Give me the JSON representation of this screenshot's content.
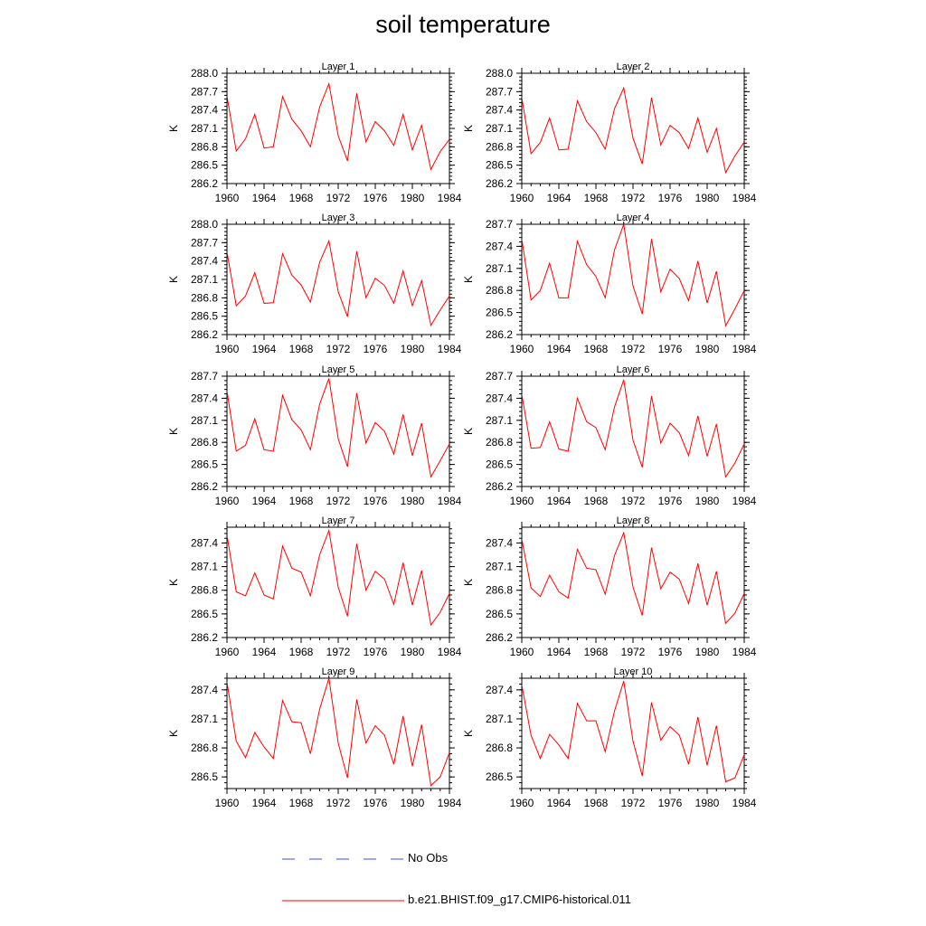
{
  "title": "soil temperature",
  "chart_data": {
    "type": "line",
    "x": [
      1960,
      1961,
      1962,
      1963,
      1964,
      1965,
      1966,
      1967,
      1968,
      1969,
      1970,
      1971,
      1972,
      1973,
      1974,
      1975,
      1976,
      1977,
      1978,
      1979,
      1980,
      1981,
      1982,
      1983,
      1984
    ],
    "xticks": [
      1960,
      1964,
      1968,
      1972,
      1976,
      1980,
      1984
    ],
    "xlim": [
      1960,
      1984
    ],
    "ylabel": "K",
    "series_color": "#ff0000",
    "panels": [
      {
        "title": "Layer 1",
        "ylim": [
          286.2,
          288.0
        ],
        "yticks": [
          286.2,
          286.5,
          286.8,
          287.1,
          287.4,
          287.7,
          288.0
        ],
        "values": [
          287.63,
          286.73,
          286.93,
          287.33,
          286.78,
          286.8,
          287.62,
          287.25,
          287.06,
          286.8,
          287.45,
          287.83,
          286.98,
          286.57,
          287.67,
          286.88,
          287.21,
          287.06,
          286.82,
          287.33,
          286.75,
          287.15,
          286.43,
          286.72,
          286.92
        ]
      },
      {
        "title": "Layer 2",
        "ylim": [
          286.2,
          288.0
        ],
        "yticks": [
          286.2,
          286.5,
          286.8,
          287.1,
          287.4,
          287.7,
          288.0
        ],
        "values": [
          287.6,
          286.69,
          286.87,
          287.27,
          286.75,
          286.76,
          287.55,
          287.21,
          287.03,
          286.76,
          287.42,
          287.76,
          286.94,
          286.52,
          287.6,
          286.83,
          287.15,
          287.03,
          286.77,
          287.27,
          286.71,
          287.1,
          286.38,
          286.65,
          286.88
        ]
      },
      {
        "title": "Layer 3",
        "ylim": [
          286.2,
          288.0
        ],
        "yticks": [
          286.2,
          286.5,
          286.8,
          287.1,
          287.4,
          287.7,
          288.0
        ],
        "values": [
          287.55,
          286.67,
          286.83,
          287.21,
          286.71,
          286.72,
          287.52,
          287.17,
          287.01,
          286.73,
          287.38,
          287.73,
          286.9,
          286.49,
          287.56,
          286.8,
          287.12,
          287.0,
          286.71,
          287.24,
          286.67,
          287.08,
          286.35,
          286.6,
          286.83
        ]
      },
      {
        "title": "Layer 4",
        "ylim": [
          286.2,
          287.7
        ],
        "yticks": [
          286.2,
          286.5,
          286.8,
          287.1,
          287.4,
          287.7
        ],
        "values": [
          287.5,
          286.67,
          286.8,
          287.17,
          286.7,
          286.7,
          287.47,
          287.15,
          286.99,
          286.7,
          287.35,
          287.7,
          286.86,
          286.48,
          287.5,
          286.78,
          287.09,
          286.96,
          286.66,
          287.2,
          286.63,
          287.06,
          286.32,
          286.55,
          286.8
        ]
      },
      {
        "title": "Layer 5",
        "ylim": [
          286.2,
          287.7
        ],
        "yticks": [
          286.2,
          286.5,
          286.8,
          287.1,
          287.4,
          287.7
        ],
        "values": [
          287.5,
          286.68,
          286.76,
          287.12,
          286.7,
          286.68,
          287.44,
          287.11,
          286.97,
          286.7,
          287.32,
          287.67,
          286.85,
          286.47,
          287.47,
          286.79,
          287.07,
          286.95,
          286.64,
          287.18,
          286.62,
          287.06,
          286.33,
          286.55,
          286.78
        ]
      },
      {
        "title": "Layer 6",
        "ylim": [
          286.2,
          287.7
        ],
        "yticks": [
          286.2,
          286.5,
          286.8,
          287.1,
          287.4,
          287.7
        ],
        "values": [
          287.45,
          286.72,
          286.73,
          287.08,
          286.71,
          286.68,
          287.4,
          287.08,
          287.0,
          286.7,
          287.28,
          287.65,
          286.83,
          286.46,
          287.43,
          286.79,
          287.06,
          286.93,
          286.62,
          287.16,
          286.61,
          287.05,
          286.33,
          286.52,
          286.78
        ]
      },
      {
        "title": "Layer 7",
        "ylim": [
          286.2,
          287.6
        ],
        "yticks": [
          286.2,
          286.5,
          286.8,
          287.1,
          287.4
        ],
        "values": [
          287.5,
          286.78,
          286.73,
          287.02,
          286.74,
          286.69,
          287.36,
          287.08,
          287.03,
          286.73,
          287.25,
          287.56,
          286.84,
          286.47,
          287.39,
          286.8,
          287.04,
          286.94,
          286.62,
          287.15,
          286.61,
          287.05,
          286.36,
          286.52,
          286.76
        ]
      },
      {
        "title": "Layer 8",
        "ylim": [
          286.2,
          287.6
        ],
        "yticks": [
          286.2,
          286.5,
          286.8,
          287.1,
          287.4
        ],
        "values": [
          287.45,
          286.83,
          286.72,
          286.99,
          286.78,
          286.7,
          287.32,
          287.08,
          287.06,
          286.75,
          287.24,
          287.53,
          286.84,
          286.48,
          287.34,
          286.82,
          287.03,
          286.94,
          286.63,
          287.14,
          286.61,
          287.04,
          286.38,
          286.51,
          286.76
        ]
      },
      {
        "title": "Layer 9",
        "ylim": [
          286.38,
          287.52
        ],
        "yticks": [
          286.5,
          286.8,
          287.1,
          287.4
        ],
        "values": [
          287.48,
          286.87,
          286.7,
          286.96,
          286.81,
          286.69,
          287.29,
          287.07,
          287.06,
          286.74,
          287.2,
          287.52,
          286.85,
          286.49,
          287.3,
          286.85,
          287.03,
          286.93,
          286.63,
          287.13,
          286.61,
          287.04,
          286.41,
          286.5,
          286.75
        ]
      },
      {
        "title": "Layer 10",
        "ylim": [
          286.38,
          287.52
        ],
        "yticks": [
          286.5,
          286.8,
          287.1,
          287.4
        ],
        "values": [
          287.45,
          286.93,
          286.69,
          286.94,
          286.83,
          286.69,
          287.26,
          287.08,
          287.08,
          286.76,
          287.18,
          287.49,
          286.87,
          286.51,
          287.27,
          286.88,
          287.02,
          286.93,
          286.63,
          287.12,
          286.62,
          287.03,
          286.45,
          286.49,
          286.73
        ]
      }
    ],
    "legend": [
      {
        "name": "No Obs",
        "color": "#3355cc",
        "style": "dashed"
      },
      {
        "name": "b.e21.BHIST.f09_g17.CMIP6-historical.011",
        "color": "#ff0000",
        "style": "solid"
      }
    ]
  }
}
